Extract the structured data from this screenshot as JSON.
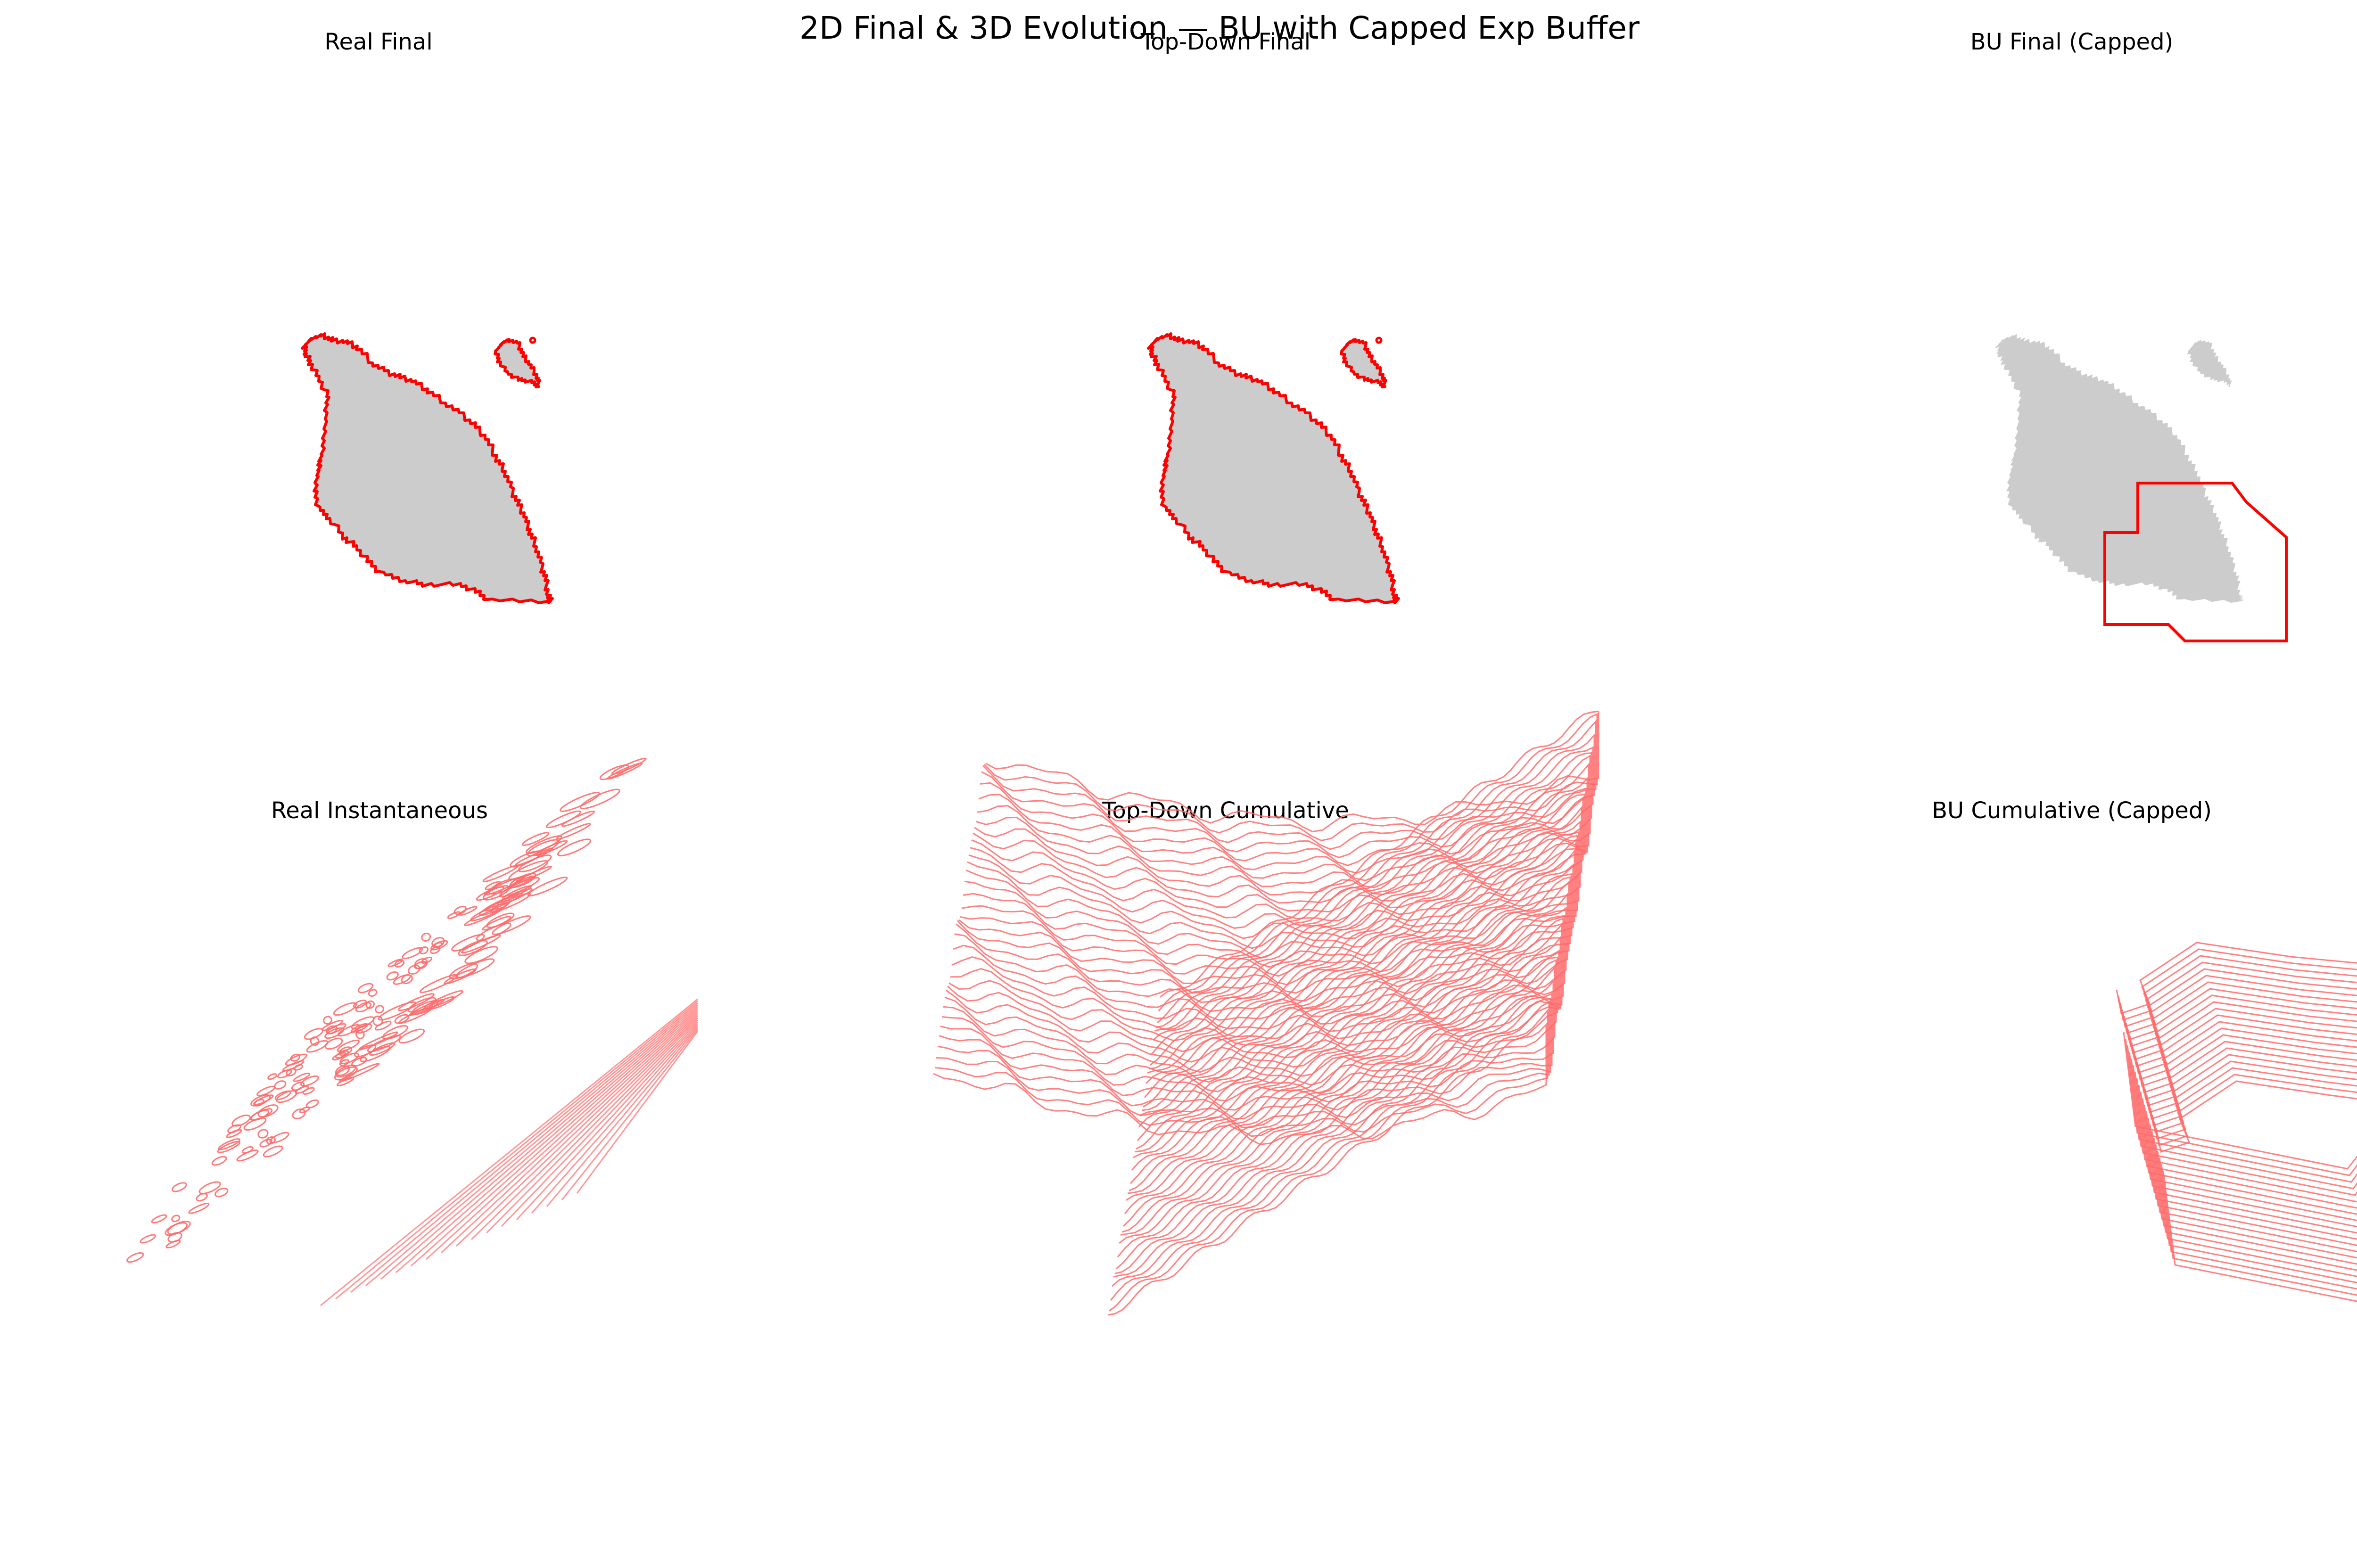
{
  "figure": {
    "title": "2D Final & 3D Evolution — BU with Capped Exp Buffer"
  },
  "panels": [
    {
      "id": "real-final",
      "title": "Real Final",
      "kind": "2d",
      "show_burn_area": true,
      "outline": "fire"
    },
    {
      "id": "top-down-final",
      "title": "Top-Down Final",
      "kind": "2d",
      "show_burn_area": true,
      "outline": "fire"
    },
    {
      "id": "bu-final-capped",
      "title": "BU Final (Capped)",
      "kind": "2d",
      "show_burn_area": true,
      "outline": "capped-buffer"
    },
    {
      "id": "real-instantaneous",
      "title": "Real Instantaneous",
      "kind": "3d-stack",
      "style": "fragments"
    },
    {
      "id": "top-down-cumulative",
      "title": "Top-Down Cumulative",
      "kind": "3d-stack",
      "style": "cumulative"
    },
    {
      "id": "bu-cumulative-capped",
      "title": "BU Cumulative (Capped)",
      "kind": "3d-stack",
      "style": "capped"
    }
  ],
  "colors": {
    "burn_area": "#cccccc",
    "perimeter": "#ff0000",
    "stack_line": "#ff6b6b"
  }
}
